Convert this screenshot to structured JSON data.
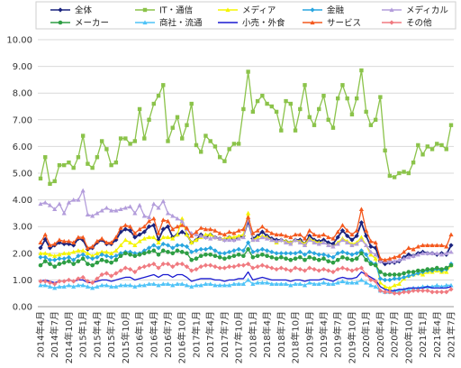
{
  "chart_data": {
    "type": "line",
    "title": "",
    "xlabel": "",
    "ylabel": "",
    "ylim": [
      0,
      10
    ],
    "yticks": [
      "0.00",
      "1.00",
      "2.00",
      "3.00",
      "4.00",
      "5.00",
      "6.00",
      "7.00",
      "8.00",
      "9.00",
      "10.00"
    ],
    "grid": true,
    "legend_position": "top",
    "x": [
      "2014年4月",
      "2014年5月",
      "2014年6月",
      "2014年7月",
      "2014年8月",
      "2014年9月",
      "2014年10月",
      "2014年11月",
      "2014年12月",
      "2015年1月",
      "2015年2月",
      "2015年3月",
      "2015年4月",
      "2015年5月",
      "2015年6月",
      "2015年7月",
      "2015年8月",
      "2015年9月",
      "2015年10月",
      "2015年11月",
      "2015年12月",
      "2016年1月",
      "2016年2月",
      "2016年3月",
      "2016年4月",
      "2016年5月",
      "2016年6月",
      "2016年7月",
      "2016年8月",
      "2016年9月",
      "2016年10月",
      "2016年11月",
      "2016年12月",
      "2017年1月",
      "2017年2月",
      "2017年3月",
      "2017年4月",
      "2017年5月",
      "2017年6月",
      "2017年7月",
      "2017年8月",
      "2017年9月",
      "2017年10月",
      "2017年11月",
      "2017年12月",
      "2018年1月",
      "2018年2月",
      "2018年3月",
      "2018年4月",
      "2018年5月",
      "2018年6月",
      "2018年7月",
      "2018年8月",
      "2018年9月",
      "2018年10月",
      "2018年11月",
      "2018年12月",
      "2019年1月",
      "2019年2月",
      "2019年3月",
      "2019年4月",
      "2019年5月",
      "2019年6月",
      "2019年7月",
      "2019年8月",
      "2019年9月",
      "2019年10月",
      "2019年11月",
      "2019年12月",
      "2020年1月",
      "2020年2月",
      "2020年3月",
      "2020年4月",
      "2020年5月",
      "2020年6月",
      "2020年7月",
      "2020年8月",
      "2020年9月",
      "2020年10月",
      "2020年11月",
      "2020年12月",
      "2021年1月",
      "2021年2月",
      "2021年3月",
      "2021年4月",
      "2021年5月",
      "2021年6月",
      "2021年7月"
    ],
    "series": [
      {
        "name": "全体",
        "color": "#1a237e",
        "marker": "diamond",
        "values": [
          2.2,
          2.52,
          2.2,
          2.3,
          2.4,
          2.35,
          2.35,
          2.3,
          2.55,
          2.5,
          2.15,
          2.2,
          2.4,
          2.5,
          2.35,
          2.35,
          2.5,
          2.8,
          2.9,
          2.85,
          2.6,
          2.7,
          2.8,
          3.0,
          3.05,
          2.5,
          2.9,
          3.0,
          2.6,
          2.7,
          2.8,
          2.7,
          2.4,
          2.5,
          2.7,
          2.6,
          2.7,
          2.6,
          2.55,
          2.5,
          2.6,
          2.5,
          2.6,
          2.65,
          3.2,
          2.55,
          2.65,
          2.8,
          2.65,
          2.55,
          2.5,
          2.5,
          2.45,
          2.4,
          2.5,
          2.5,
          2.35,
          2.65,
          2.5,
          2.45,
          2.5,
          2.4,
          2.35,
          2.6,
          2.85,
          2.65,
          2.5,
          2.65,
          3.15,
          2.65,
          2.25,
          2.2,
          1.7,
          1.6,
          1.65,
          1.65,
          1.7,
          1.85,
          1.95,
          1.9,
          2.0,
          2.05,
          2.0,
          2.0,
          1.95,
          2.0,
          1.95,
          2.3
        ]
      },
      {
        "name": "IT・通信",
        "color": "#8bc34a",
        "marker": "square",
        "values": [
          4.8,
          5.6,
          4.6,
          4.7,
          5.3,
          5.3,
          5.4,
          5.2,
          5.6,
          6.4,
          5.35,
          5.2,
          5.6,
          6.2,
          5.9,
          5.3,
          5.4,
          6.3,
          6.3,
          6.1,
          6.2,
          7.4,
          6.3,
          7.0,
          7.6,
          7.9,
          8.3,
          6.2,
          6.7,
          7.1,
          6.3,
          6.8,
          7.6,
          6.05,
          5.8,
          6.4,
          6.2,
          6.0,
          5.6,
          5.45,
          5.9,
          6.1,
          6.1,
          7.4,
          8.8,
          7.3,
          7.7,
          7.9,
          7.6,
          7.5,
          7.3,
          6.6,
          7.7,
          7.6,
          6.6,
          7.4,
          8.3,
          7.1,
          6.8,
          7.4,
          7.9,
          7.0,
          6.7,
          7.8,
          8.3,
          7.8,
          7.2,
          7.8,
          8.85,
          7.3,
          6.8,
          7.0,
          7.85,
          5.85,
          4.9,
          4.85,
          5.0,
          5.05,
          5.0,
          5.4,
          6.05,
          5.7,
          6.0,
          5.9,
          6.1,
          6.05,
          5.9,
          6.8
        ]
      },
      {
        "name": "メディア",
        "color": "#f5f500",
        "marker": "triangle",
        "values": [
          2.0,
          2.0,
          1.95,
          1.9,
          1.95,
          2.0,
          2.0,
          2.05,
          2.1,
          2.1,
          2.0,
          1.9,
          2.0,
          2.05,
          2.05,
          2.0,
          2.1,
          2.3,
          2.5,
          2.4,
          2.3,
          2.45,
          2.55,
          2.6,
          2.6,
          2.4,
          2.6,
          2.6,
          2.55,
          2.7,
          3.3,
          2.7,
          2.4,
          2.5,
          2.6,
          2.7,
          2.7,
          2.6,
          2.55,
          2.55,
          2.6,
          2.6,
          2.65,
          2.7,
          3.5,
          2.5,
          2.6,
          2.65,
          2.6,
          2.5,
          2.4,
          2.5,
          2.45,
          2.4,
          2.5,
          2.45,
          2.35,
          2.55,
          2.45,
          2.4,
          2.4,
          2.3,
          2.25,
          2.4,
          2.55,
          2.45,
          2.35,
          2.4,
          2.6,
          2.3,
          1.95,
          1.8,
          0.9,
          0.75,
          0.7,
          0.8,
          0.85,
          1.05,
          1.15,
          1.2,
          1.25,
          1.2,
          1.3,
          1.3,
          1.35,
          1.3,
          1.3,
          1.55
        ]
      },
      {
        "name": "金融",
        "color": "#2aa6e0",
        "marker": "diamond",
        "values": [
          1.85,
          1.85,
          1.75,
          1.75,
          1.8,
          1.8,
          1.85,
          1.75,
          1.9,
          1.95,
          1.85,
          1.8,
          1.85,
          1.95,
          1.9,
          1.85,
          1.9,
          2.0,
          2.05,
          2.05,
          2.0,
          2.0,
          2.1,
          2.2,
          2.3,
          2.2,
          2.35,
          2.3,
          2.2,
          2.3,
          2.3,
          2.25,
          2.05,
          2.1,
          2.15,
          2.15,
          2.2,
          2.1,
          2.0,
          2.0,
          2.05,
          2.1,
          2.15,
          2.1,
          2.4,
          2.05,
          2.1,
          2.15,
          2.1,
          2.05,
          2.0,
          2.0,
          2.0,
          2.0,
          2.0,
          2.05,
          1.95,
          2.05,
          2.0,
          1.95,
          1.95,
          1.9,
          1.85,
          2.0,
          2.05,
          2.0,
          1.95,
          2.0,
          2.1,
          1.95,
          1.65,
          1.6,
          1.05,
          1.0,
          1.0,
          1.05,
          1.05,
          1.1,
          1.15,
          1.2,
          1.25,
          1.3,
          1.35,
          1.35,
          1.4,
          1.35,
          1.4,
          1.6
        ]
      },
      {
        "name": "メディカル",
        "color": "#b39ddb",
        "marker": "triangle",
        "values": [
          3.85,
          3.9,
          3.8,
          3.65,
          3.85,
          3.5,
          3.9,
          4.0,
          4.0,
          4.35,
          3.45,
          3.4,
          3.5,
          3.6,
          3.7,
          3.6,
          3.6,
          3.65,
          3.7,
          3.75,
          3.5,
          3.8,
          3.4,
          3.35,
          3.85,
          3.7,
          3.95,
          3.5,
          3.4,
          3.3,
          3.2,
          2.9,
          2.75,
          2.7,
          2.65,
          2.6,
          2.55,
          2.6,
          2.55,
          2.5,
          2.5,
          2.5,
          2.55,
          2.6,
          3.3,
          2.5,
          2.5,
          2.6,
          2.55,
          2.5,
          2.45,
          2.5,
          2.4,
          2.35,
          2.5,
          2.4,
          2.3,
          2.5,
          2.4,
          2.35,
          2.4,
          2.3,
          2.25,
          2.35,
          2.5,
          2.4,
          2.3,
          2.35,
          2.5,
          2.3,
          2.05,
          1.95,
          1.7,
          1.7,
          1.7,
          1.7,
          1.75,
          1.8,
          1.85,
          1.9,
          1.95,
          2.0,
          2.0,
          2.0,
          2.0,
          1.95,
          2.0,
          2.05
        ]
      },
      {
        "name": "メーカー",
        "color": "#2e9e44",
        "marker": "circle",
        "values": [
          1.55,
          1.7,
          1.6,
          1.5,
          1.6,
          1.65,
          1.7,
          1.6,
          1.7,
          1.8,
          1.6,
          1.55,
          1.65,
          1.75,
          1.7,
          1.65,
          1.75,
          1.9,
          2.0,
          1.95,
          1.9,
          1.95,
          2.0,
          2.05,
          2.1,
          1.95,
          2.1,
          2.05,
          2.0,
          2.1,
          2.05,
          2.0,
          1.75,
          1.8,
          1.9,
          1.95,
          1.95,
          1.9,
          1.85,
          1.8,
          1.85,
          1.9,
          1.95,
          1.9,
          2.15,
          1.85,
          1.9,
          1.95,
          1.9,
          1.85,
          1.8,
          1.85,
          1.8,
          1.75,
          1.8,
          1.85,
          1.75,
          1.85,
          1.8,
          1.75,
          1.8,
          1.7,
          1.65,
          1.75,
          1.85,
          1.8,
          1.75,
          1.8,
          2.0,
          1.75,
          1.6,
          1.55,
          1.3,
          1.2,
          1.2,
          1.2,
          1.2,
          1.25,
          1.3,
          1.3,
          1.35,
          1.35,
          1.4,
          1.4,
          1.45,
          1.4,
          1.45,
          1.55
        ]
      },
      {
        "name": "商社・流通",
        "color": "#4fc3f7",
        "marker": "triangle",
        "values": [
          0.8,
          0.8,
          0.75,
          0.7,
          0.75,
          0.75,
          0.8,
          0.75,
          0.8,
          0.8,
          0.75,
          0.7,
          0.75,
          0.8,
          0.8,
          0.75,
          0.75,
          0.8,
          0.8,
          0.8,
          0.75,
          0.8,
          0.8,
          0.85,
          0.85,
          0.8,
          0.85,
          0.85,
          0.8,
          0.85,
          0.85,
          0.8,
          0.75,
          0.8,
          0.8,
          0.85,
          0.85,
          0.8,
          0.8,
          0.8,
          0.8,
          0.85,
          0.85,
          0.85,
          1.0,
          0.85,
          0.9,
          0.9,
          0.9,
          0.85,
          0.85,
          0.85,
          0.85,
          0.8,
          0.85,
          0.85,
          0.8,
          0.9,
          0.85,
          0.85,
          0.9,
          0.85,
          0.85,
          0.9,
          0.95,
          0.9,
          0.9,
          0.9,
          1.0,
          0.9,
          0.8,
          0.75,
          0.6,
          0.55,
          0.55,
          0.6,
          0.6,
          0.65,
          0.65,
          0.7,
          0.7,
          0.75,
          0.75,
          0.75,
          0.8,
          0.75,
          0.8,
          0.8
        ]
      },
      {
        "name": "小売・外食",
        "color": "#1a1ad0",
        "marker": "none",
        "values": [
          0.95,
          1.0,
          0.95,
          0.9,
          0.95,
          0.95,
          1.0,
          0.95,
          1.0,
          1.0,
          0.9,
          0.9,
          0.95,
          1.0,
          1.0,
          0.95,
          1.0,
          1.05,
          1.1,
          1.1,
          1.0,
          1.05,
          1.1,
          1.15,
          1.2,
          1.1,
          1.2,
          1.2,
          1.1,
          1.2,
          1.2,
          1.1,
          0.95,
          1.0,
          1.05,
          1.05,
          1.05,
          1.0,
          1.0,
          0.95,
          1.0,
          1.0,
          1.05,
          1.05,
          1.3,
          1.0,
          1.05,
          1.1,
          1.05,
          1.0,
          1.0,
          1.0,
          1.0,
          0.95,
          1.0,
          1.0,
          0.95,
          1.0,
          1.0,
          1.0,
          1.05,
          1.0,
          0.95,
          1.05,
          1.1,
          1.05,
          1.05,
          1.1,
          1.3,
          1.2,
          1.1,
          1.0,
          0.75,
          0.65,
          0.6,
          0.6,
          0.65,
          0.65,
          0.7,
          0.7,
          0.7,
          0.7,
          0.75,
          0.7,
          0.7,
          0.7,
          0.7,
          0.75
        ]
      },
      {
        "name": "サービス",
        "color": "#f4591e",
        "marker": "triangle",
        "values": [
          2.4,
          2.7,
          2.3,
          2.35,
          2.5,
          2.45,
          2.45,
          2.4,
          2.6,
          2.6,
          2.2,
          2.25,
          2.45,
          2.55,
          2.4,
          2.4,
          2.6,
          2.95,
          3.05,
          3.0,
          2.75,
          2.9,
          3.0,
          3.2,
          3.3,
          2.75,
          3.25,
          3.2,
          2.9,
          3.0,
          3.05,
          2.95,
          2.65,
          2.8,
          2.95,
          2.9,
          2.9,
          2.85,
          2.75,
          2.7,
          2.8,
          2.75,
          2.85,
          2.9,
          3.35,
          2.75,
          2.85,
          3.0,
          2.85,
          2.75,
          2.7,
          2.7,
          2.65,
          2.6,
          2.7,
          2.7,
          2.55,
          2.85,
          2.7,
          2.65,
          2.7,
          2.6,
          2.55,
          2.8,
          3.05,
          2.85,
          2.7,
          2.85,
          3.65,
          2.85,
          2.45,
          2.4,
          1.8,
          1.75,
          1.8,
          1.85,
          1.9,
          2.05,
          2.2,
          2.15,
          2.25,
          2.3,
          2.3,
          2.3,
          2.3,
          2.3,
          2.25,
          2.7
        ]
      },
      {
        "name": "その他",
        "color": "#f07a80",
        "marker": "diamond",
        "values": [
          0.95,
          0.95,
          0.9,
          0.85,
          0.95,
          0.95,
          1.0,
          0.95,
          1.05,
          1.1,
          0.95,
          0.9,
          1.05,
          1.2,
          1.25,
          1.15,
          1.25,
          1.35,
          1.45,
          1.4,
          1.3,
          1.45,
          1.5,
          1.55,
          1.6,
          1.45,
          1.6,
          1.6,
          1.5,
          1.6,
          1.6,
          1.5,
          1.35,
          1.4,
          1.5,
          1.55,
          1.55,
          1.5,
          1.45,
          1.45,
          1.5,
          1.5,
          1.55,
          1.55,
          1.6,
          1.45,
          1.5,
          1.55,
          1.5,
          1.45,
          1.4,
          1.45,
          1.4,
          1.35,
          1.45,
          1.4,
          1.35,
          1.45,
          1.4,
          1.35,
          1.4,
          1.35,
          1.3,
          1.4,
          1.45,
          1.4,
          1.35,
          1.4,
          1.45,
          1.2,
          1.0,
          0.95,
          0.6,
          0.55,
          0.55,
          0.5,
          0.5,
          0.55,
          0.55,
          0.6,
          0.6,
          0.6,
          0.6,
          0.55,
          0.55,
          0.55,
          0.55,
          0.65
        ]
      }
    ],
    "xticks_every": 3
  }
}
